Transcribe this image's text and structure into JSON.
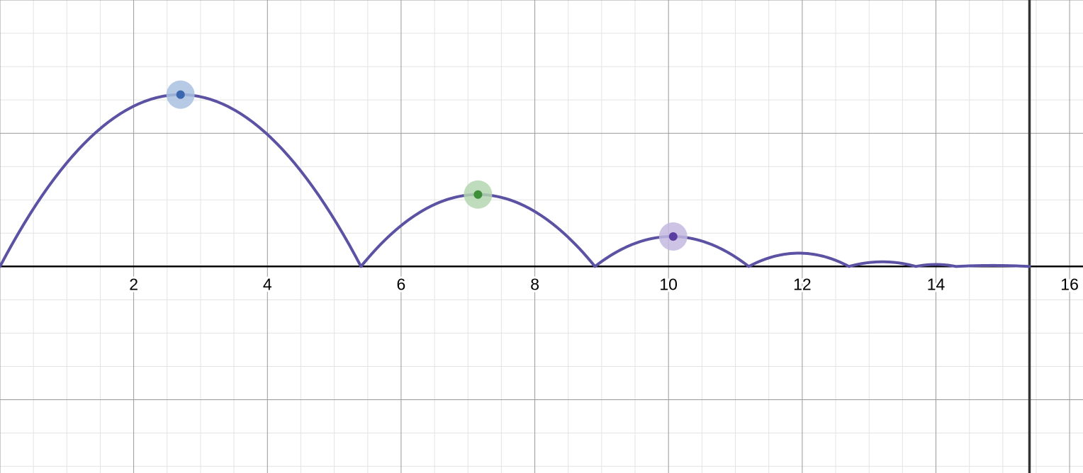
{
  "chart_data": {
    "type": "line",
    "title": "",
    "xlabel": "",
    "ylabel": "",
    "xlim": [
      0,
      16.2
    ],
    "ylim": [
      -3.1,
      4.0
    ],
    "grid": true,
    "x_ticks": [
      "2",
      "4",
      "6",
      "8",
      "10",
      "12",
      "14",
      "16"
    ],
    "x_tick_values": [
      2,
      4,
      6,
      8,
      10,
      12,
      14,
      16
    ],
    "major_grid_step": 2,
    "minor_grid_step": 0.5,
    "vertical_line_x": 15.4,
    "series": [
      {
        "color": "#5b52a3",
        "segments": [
          {
            "x0": 0.0,
            "x1": 5.4,
            "peak": 2.58
          },
          {
            "x0": 5.4,
            "x1": 8.9,
            "peak": 1.08
          },
          {
            "x0": 8.9,
            "x1": 11.2,
            "peak": 0.45
          },
          {
            "x0": 11.2,
            "x1": 12.7,
            "peak": 0.2
          },
          {
            "x0": 12.7,
            "x1": 13.7,
            "peak": 0.07
          },
          {
            "x0": 13.7,
            "x1": 14.3,
            "peak": 0.03
          },
          {
            "x0": 14.3,
            "x1": 15.4,
            "peak": 0.015
          }
        ]
      }
    ],
    "points": [
      {
        "x": 2.7,
        "y": 2.58,
        "color": "#3a67b0",
        "halo": "#a9c1e2"
      },
      {
        "x": 7.15,
        "y": 1.08,
        "color": "#3f8f3a",
        "halo": "#b4d6b1"
      },
      {
        "x": 10.07,
        "y": 0.45,
        "color": "#5b3ea1",
        "halo": "#c3b9e0"
      }
    ]
  }
}
